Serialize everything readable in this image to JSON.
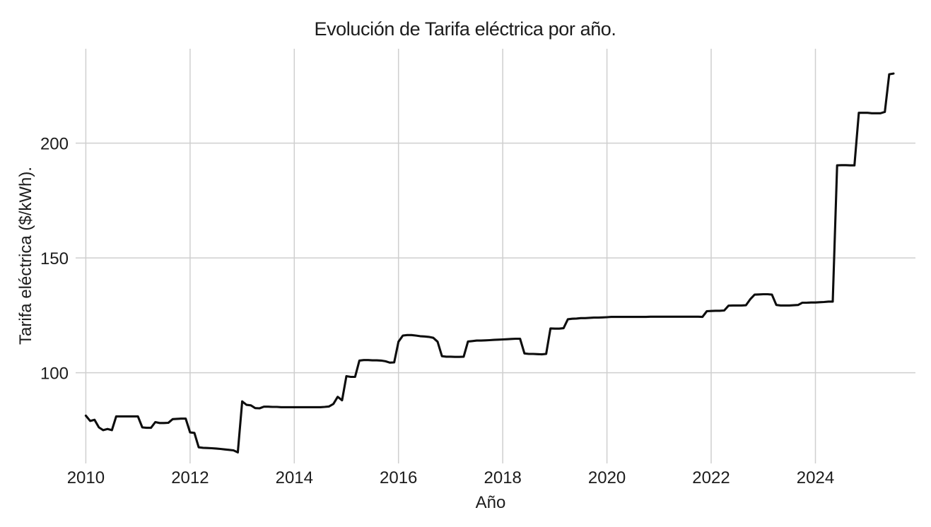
{
  "colors": {
    "background": "#ffffff",
    "grid": "#cfcfcf",
    "line": "#0d0d0d",
    "text": "#1c1c1c"
  },
  "chart_data": {
    "type": "line",
    "title": "Evolución de Tarifa eléctrica por año.",
    "xlabel": "Año",
    "ylabel": "Tarifa eléctrica ($/kWh).",
    "x_ticks": [
      2010,
      2012,
      2014,
      2016,
      2018,
      2020,
      2022,
      2024
    ],
    "y_ticks": [
      100,
      150,
      200
    ],
    "xlim": [
      2009.75,
      2025.92
    ],
    "ylim": [
      60.5,
      241.1
    ],
    "grid": true,
    "legend": false,
    "x_unit": "year (monthly data)",
    "x_start": 2010.0,
    "x_step": 0.083333,
    "series": [
      {
        "name": "Tarifa eléctrica ($/kWh)",
        "values": [
          81.3,
          79.0,
          79.5,
          76.2,
          75.0,
          75.5,
          75.0,
          81.0,
          81.0,
          81.0,
          81.0,
          81.0,
          81.0,
          76.2,
          76.0,
          76.0,
          78.5,
          78.1,
          78.1,
          78.2,
          79.8,
          79.9,
          80.0,
          80.0,
          74.0,
          73.8,
          67.5,
          67.3,
          67.2,
          67.1,
          67.0,
          66.8,
          66.6,
          66.4,
          66.2,
          65.3,
          87.5,
          86.0,
          85.8,
          84.6,
          84.5,
          85.2,
          85.2,
          85.1,
          85.1,
          85.0,
          85.0,
          85.0,
          85.0,
          85.0,
          85.0,
          85.0,
          85.0,
          85.0,
          85.0,
          85.1,
          85.3,
          86.4,
          89.5,
          88.0,
          98.5,
          98.2,
          98.2,
          105.3,
          105.5,
          105.5,
          105.4,
          105.4,
          105.3,
          105.0,
          104.4,
          104.5,
          113.5,
          116.2,
          116.4,
          116.4,
          116.2,
          115.9,
          115.8,
          115.6,
          115.2,
          113.5,
          107.2,
          107.0,
          107.0,
          106.9,
          106.9,
          107.0,
          113.6,
          113.8,
          114.0,
          114.0,
          114.1,
          114.2,
          114.3,
          114.4,
          114.5,
          114.6,
          114.7,
          114.8,
          114.8,
          108.4,
          108.2,
          108.2,
          108.1,
          108.0,
          108.2,
          119.3,
          119.2,
          119.2,
          119.4,
          123.3,
          123.5,
          123.6,
          123.8,
          123.8,
          123.9,
          124.0,
          124.0,
          124.1,
          124.2,
          124.3,
          124.3,
          124.3,
          124.3,
          124.3,
          124.3,
          124.3,
          124.3,
          124.3,
          124.4,
          124.4,
          124.4,
          124.4,
          124.4,
          124.4,
          124.4,
          124.4,
          124.4,
          124.4,
          124.4,
          124.4,
          124.3,
          126.8,
          126.9,
          127.0,
          127.0,
          127.1,
          129.2,
          129.3,
          129.3,
          129.3,
          129.4,
          132.0,
          134.0,
          134.1,
          134.2,
          134.2,
          134.0,
          129.5,
          129.3,
          129.3,
          129.3,
          129.4,
          129.5,
          130.5,
          130.5,
          130.6,
          130.6,
          130.7,
          130.8,
          131.0,
          131.0,
          190.3,
          190.4,
          190.4,
          190.3,
          190.3,
          213.2,
          213.2,
          213.2,
          213.0,
          213.0,
          213.0,
          213.6,
          230.0,
          230.3
        ]
      }
    ]
  }
}
